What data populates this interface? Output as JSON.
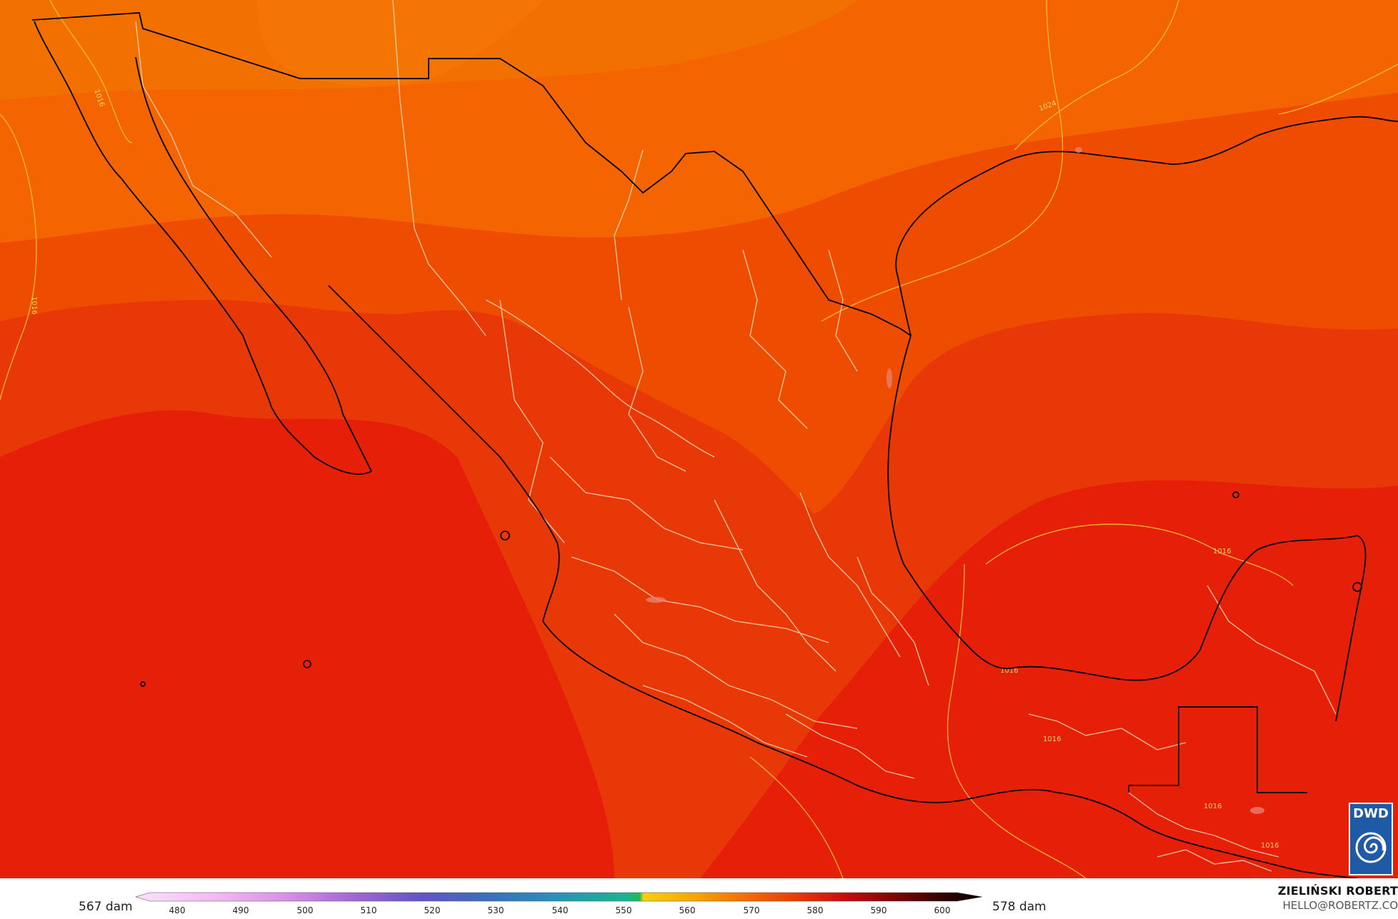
{
  "map": {
    "layers": [
      "geopotential-height-fill",
      "isobar-contours",
      "coastlines",
      "borders"
    ],
    "colors": {
      "band_far_north": "#f27000",
      "band_north": "#f46400",
      "band_mid": "#ee4c00",
      "band_south": "#e83808",
      "band_ocean": "#e51f08",
      "coastline": "#000000",
      "border_light": "#e8d6b0",
      "isobar": "#f2c438"
    },
    "isobar_labels": [
      "1016",
      "1016",
      "1024",
      "1016",
      "1016",
      "1016",
      "1016",
      "1016"
    ]
  },
  "legend": {
    "min_label": "567 dam",
    "max_label": "578 dam",
    "ticks": [
      "480",
      "490",
      "500",
      "510",
      "520",
      "530",
      "540",
      "550",
      "560",
      "570",
      "580",
      "590",
      "600"
    ]
  },
  "credit": {
    "name": "ZIELIŃSKI ROBERT",
    "email": "HELLO@ROBERTZ.CO"
  },
  "logo": {
    "text": "DWD",
    "color": "#1f5aa6"
  }
}
